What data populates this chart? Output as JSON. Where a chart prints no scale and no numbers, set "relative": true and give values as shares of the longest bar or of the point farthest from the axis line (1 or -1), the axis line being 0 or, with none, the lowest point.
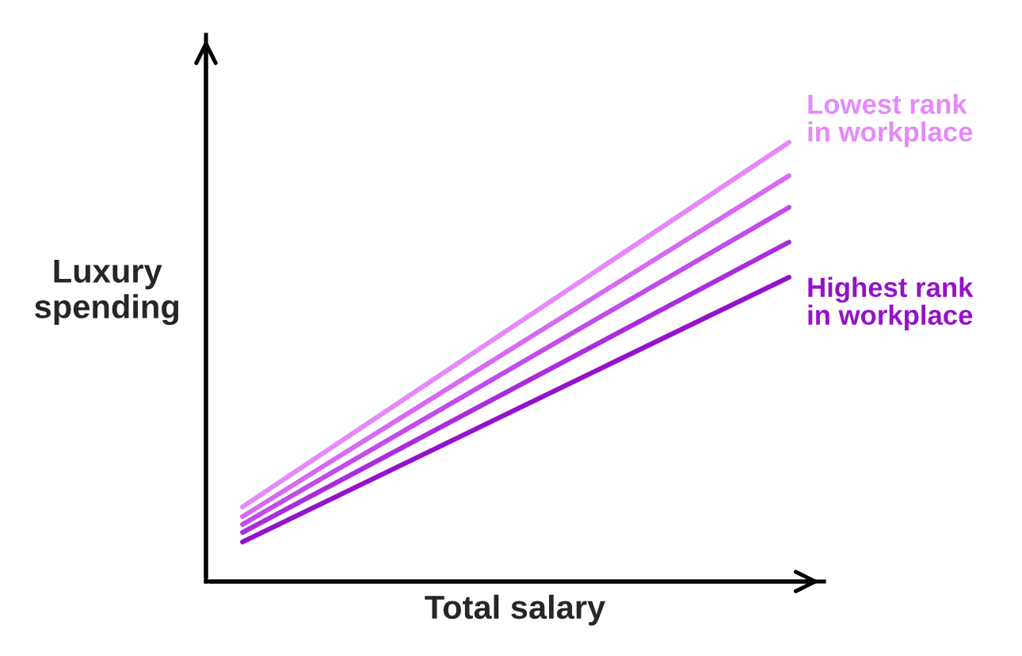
{
  "chart_data": {
    "type": "line",
    "relative": true,
    "xlabel": "Total salary",
    "ylabel": "Luxury spending",
    "categories": [
      null,
      null
    ],
    "legend": false,
    "tick_labels": false,
    "series": [
      {
        "name": "Lowest rank in workplace",
        "color": "#e48af7",
        "values": [
          0.17,
          1
        ]
      },
      {
        "color": "#d66af2",
        "values": [
          0.148,
          0.924
        ]
      },
      {
        "color": "#c24bec",
        "values": [
          0.13,
          0.852
        ]
      },
      {
        "color": "#aa2cdd",
        "values": [
          0.112,
          0.773
        ]
      },
      {
        "name": "Highest rank in workplace",
        "color": "#9412c9",
        "values": [
          0.09,
          0.693
        ]
      }
    ]
  }
}
